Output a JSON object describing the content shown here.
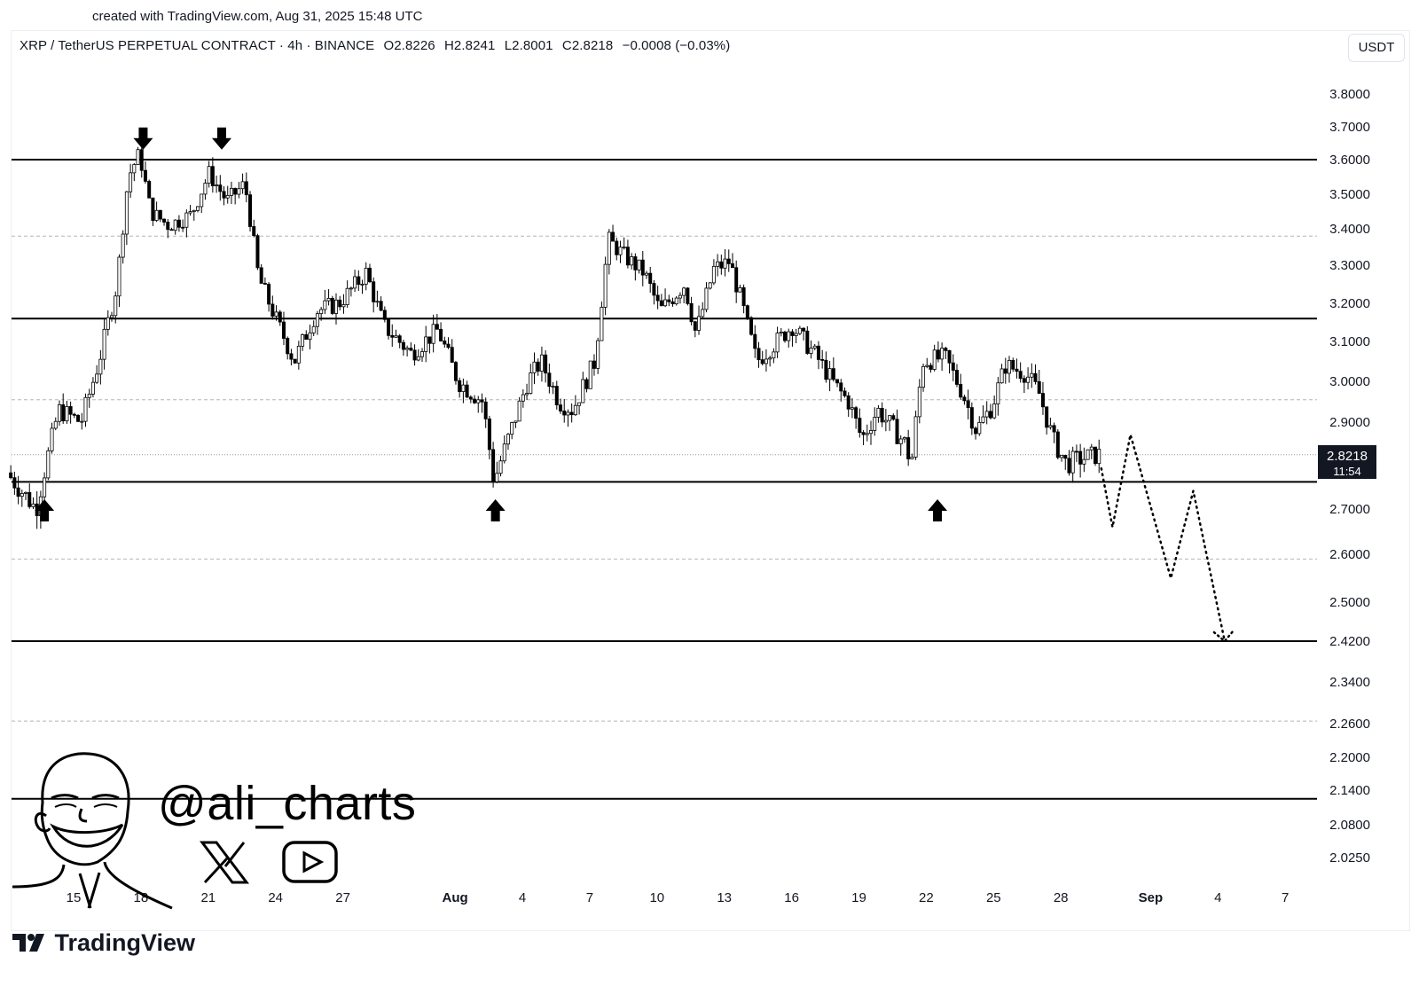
{
  "credit": "created with TradingView.com, Aug 31, 2025 15:48 UTC",
  "legend": {
    "symbol": "XRP / TetherUS PERPETUAL CONTRACT · 4h · BINANCE",
    "open": "O2.8226",
    "high": "H2.8241",
    "low": "L2.8001",
    "close": "C2.8218",
    "change": "−0.0008 (−0.03%)"
  },
  "currency_button": "USDT",
  "price_badge": {
    "price": "2.8218",
    "countdown": "11:54"
  },
  "watermark": {
    "handle": "@ali_charts",
    "icons": [
      "avatar-caricature",
      "x-logo-icon",
      "youtube-play-icon"
    ]
  },
  "brand": "TradingView",
  "colors": {
    "candle": "#000000",
    "background": "#ffffff",
    "projection": "#000000"
  },
  "chart_data": {
    "type": "candlestick",
    "interval": "4h",
    "ylim": [
      1.995,
      3.84
    ],
    "y_ticks": [
      "3.8000",
      "3.7000",
      "3.6000",
      "3.5000",
      "3.4000",
      "3.3000",
      "3.2000",
      "3.1000",
      "3.0000",
      "2.9000",
      "2.8000",
      "2.7000",
      "2.6000",
      "2.5000",
      "2.4200",
      "2.3400",
      "2.2600",
      "2.2000",
      "2.1400",
      "2.0800",
      "2.0250"
    ],
    "x_ticks": [
      {
        "label": "15",
        "day": 15
      },
      {
        "label": "18",
        "day": 18
      },
      {
        "label": "21",
        "day": 21
      },
      {
        "label": "24",
        "day": 24
      },
      {
        "label": "27",
        "day": 27
      },
      {
        "label": "Aug",
        "day": 32
      },
      {
        "label": "4",
        "day": 35
      },
      {
        "label": "7",
        "day": 38
      },
      {
        "label": "10",
        "day": 41
      },
      {
        "label": "13",
        "day": 44
      },
      {
        "label": "16",
        "day": 47
      },
      {
        "label": "19",
        "day": 50
      },
      {
        "label": "22",
        "day": 53
      },
      {
        "label": "25",
        "day": 56
      },
      {
        "label": "28",
        "day": 59
      },
      {
        "label": "Sep",
        "day": 63
      },
      {
        "label": "4",
        "day": 66
      },
      {
        "label": "7",
        "day": 69
      }
    ],
    "horizontal_levels": [
      {
        "price": 3.6,
        "style": "solid"
      },
      {
        "price": 3.38,
        "style": "dashed"
      },
      {
        "price": 3.16,
        "style": "solid"
      },
      {
        "price": 2.955,
        "style": "dashed"
      },
      {
        "price": 2.76,
        "style": "solid"
      },
      {
        "price": 2.59,
        "style": "dashed"
      },
      {
        "price": 2.42,
        "style": "solid"
      },
      {
        "price": 2.265,
        "style": "dashed"
      },
      {
        "price": 2.125,
        "style": "solid"
      }
    ],
    "anchors": [
      {
        "day": 12.2,
        "price": 2.78
      },
      {
        "day": 13.5,
        "price": 2.7
      },
      {
        "day": 14.5,
        "price": 2.93
      },
      {
        "day": 15.5,
        "price": 2.9
      },
      {
        "day": 16.3,
        "price": 3.05
      },
      {
        "day": 17.1,
        "price": 3.25
      },
      {
        "day": 17.6,
        "price": 3.55
      },
      {
        "day": 18.1,
        "price": 3.62
      },
      {
        "day": 18.6,
        "price": 3.45
      },
      {
        "day": 19.4,
        "price": 3.41
      },
      {
        "day": 20.4,
        "price": 3.44
      },
      {
        "day": 21.2,
        "price": 3.56
      },
      {
        "day": 22.0,
        "price": 3.48
      },
      {
        "day": 22.8,
        "price": 3.53
      },
      {
        "day": 23.4,
        "price": 3.27
      },
      {
        "day": 24.1,
        "price": 3.17
      },
      {
        "day": 25.0,
        "price": 3.05
      },
      {
        "day": 26.0,
        "price": 3.18
      },
      {
        "day": 27.0,
        "price": 3.2
      },
      {
        "day": 28.2,
        "price": 3.28
      },
      {
        "day": 29.0,
        "price": 3.14
      },
      {
        "day": 30.2,
        "price": 3.07
      },
      {
        "day": 31.4,
        "price": 3.13
      },
      {
        "day": 32.3,
        "price": 3.0
      },
      {
        "day": 33.4,
        "price": 2.95
      },
      {
        "day": 33.9,
        "price": 2.76
      },
      {
        "day": 34.6,
        "price": 2.87
      },
      {
        "day": 35.4,
        "price": 3.0
      },
      {
        "day": 36.0,
        "price": 3.05
      },
      {
        "day": 36.8,
        "price": 2.95
      },
      {
        "day": 37.4,
        "price": 2.93
      },
      {
        "day": 38.4,
        "price": 3.05
      },
      {
        "day": 39.0,
        "price": 3.37
      },
      {
        "day": 39.8,
        "price": 3.32
      },
      {
        "day": 40.6,
        "price": 3.28
      },
      {
        "day": 41.3,
        "price": 3.18
      },
      {
        "day": 42.4,
        "price": 3.25
      },
      {
        "day": 42.9,
        "price": 3.12
      },
      {
        "day": 43.7,
        "price": 3.29
      },
      {
        "day": 44.4,
        "price": 3.31
      },
      {
        "day": 44.9,
        "price": 3.21
      },
      {
        "day": 45.6,
        "price": 3.05
      },
      {
        "day": 46.5,
        "price": 3.1
      },
      {
        "day": 47.2,
        "price": 3.14
      },
      {
        "day": 48.3,
        "price": 3.06
      },
      {
        "day": 49.1,
        "price": 2.99
      },
      {
        "day": 49.7,
        "price": 2.95
      },
      {
        "day": 50.3,
        "price": 2.86
      },
      {
        "day": 51.0,
        "price": 2.93
      },
      {
        "day": 52.2,
        "price": 2.85
      },
      {
        "day": 52.5,
        "price": 2.8
      },
      {
        "day": 53.0,
        "price": 3.05
      },
      {
        "day": 54.0,
        "price": 3.06
      },
      {
        "day": 54.8,
        "price": 2.97
      },
      {
        "day": 55.4,
        "price": 2.88
      },
      {
        "day": 56.1,
        "price": 2.94
      },
      {
        "day": 56.7,
        "price": 3.04
      },
      {
        "day": 57.6,
        "price": 3.02
      },
      {
        "day": 58.2,
        "price": 2.97
      },
      {
        "day": 58.8,
        "price": 2.86
      },
      {
        "day": 59.4,
        "price": 2.8
      },
      {
        "day": 59.9,
        "price": 2.81
      },
      {
        "day": 60.8,
        "price": 2.8218
      }
    ],
    "projection": [
      {
        "day": 60.8,
        "price": 2.79
      },
      {
        "day": 61.3,
        "price": 2.66
      },
      {
        "day": 62.1,
        "price": 2.87
      },
      {
        "day": 63.9,
        "price": 2.55
      },
      {
        "day": 64.9,
        "price": 2.74
      },
      {
        "day": 66.3,
        "price": 2.42
      }
    ],
    "markers": [
      {
        "type": "down-arrow",
        "day": 18.1,
        "price": 3.66
      },
      {
        "type": "down-arrow",
        "day": 21.6,
        "price": 3.66
      },
      {
        "type": "up-arrow",
        "day": 13.7,
        "price": 2.7
      },
      {
        "type": "up-arrow",
        "day": 33.8,
        "price": 2.7
      },
      {
        "type": "up-arrow",
        "day": 53.5,
        "price": 2.7
      }
    ]
  }
}
